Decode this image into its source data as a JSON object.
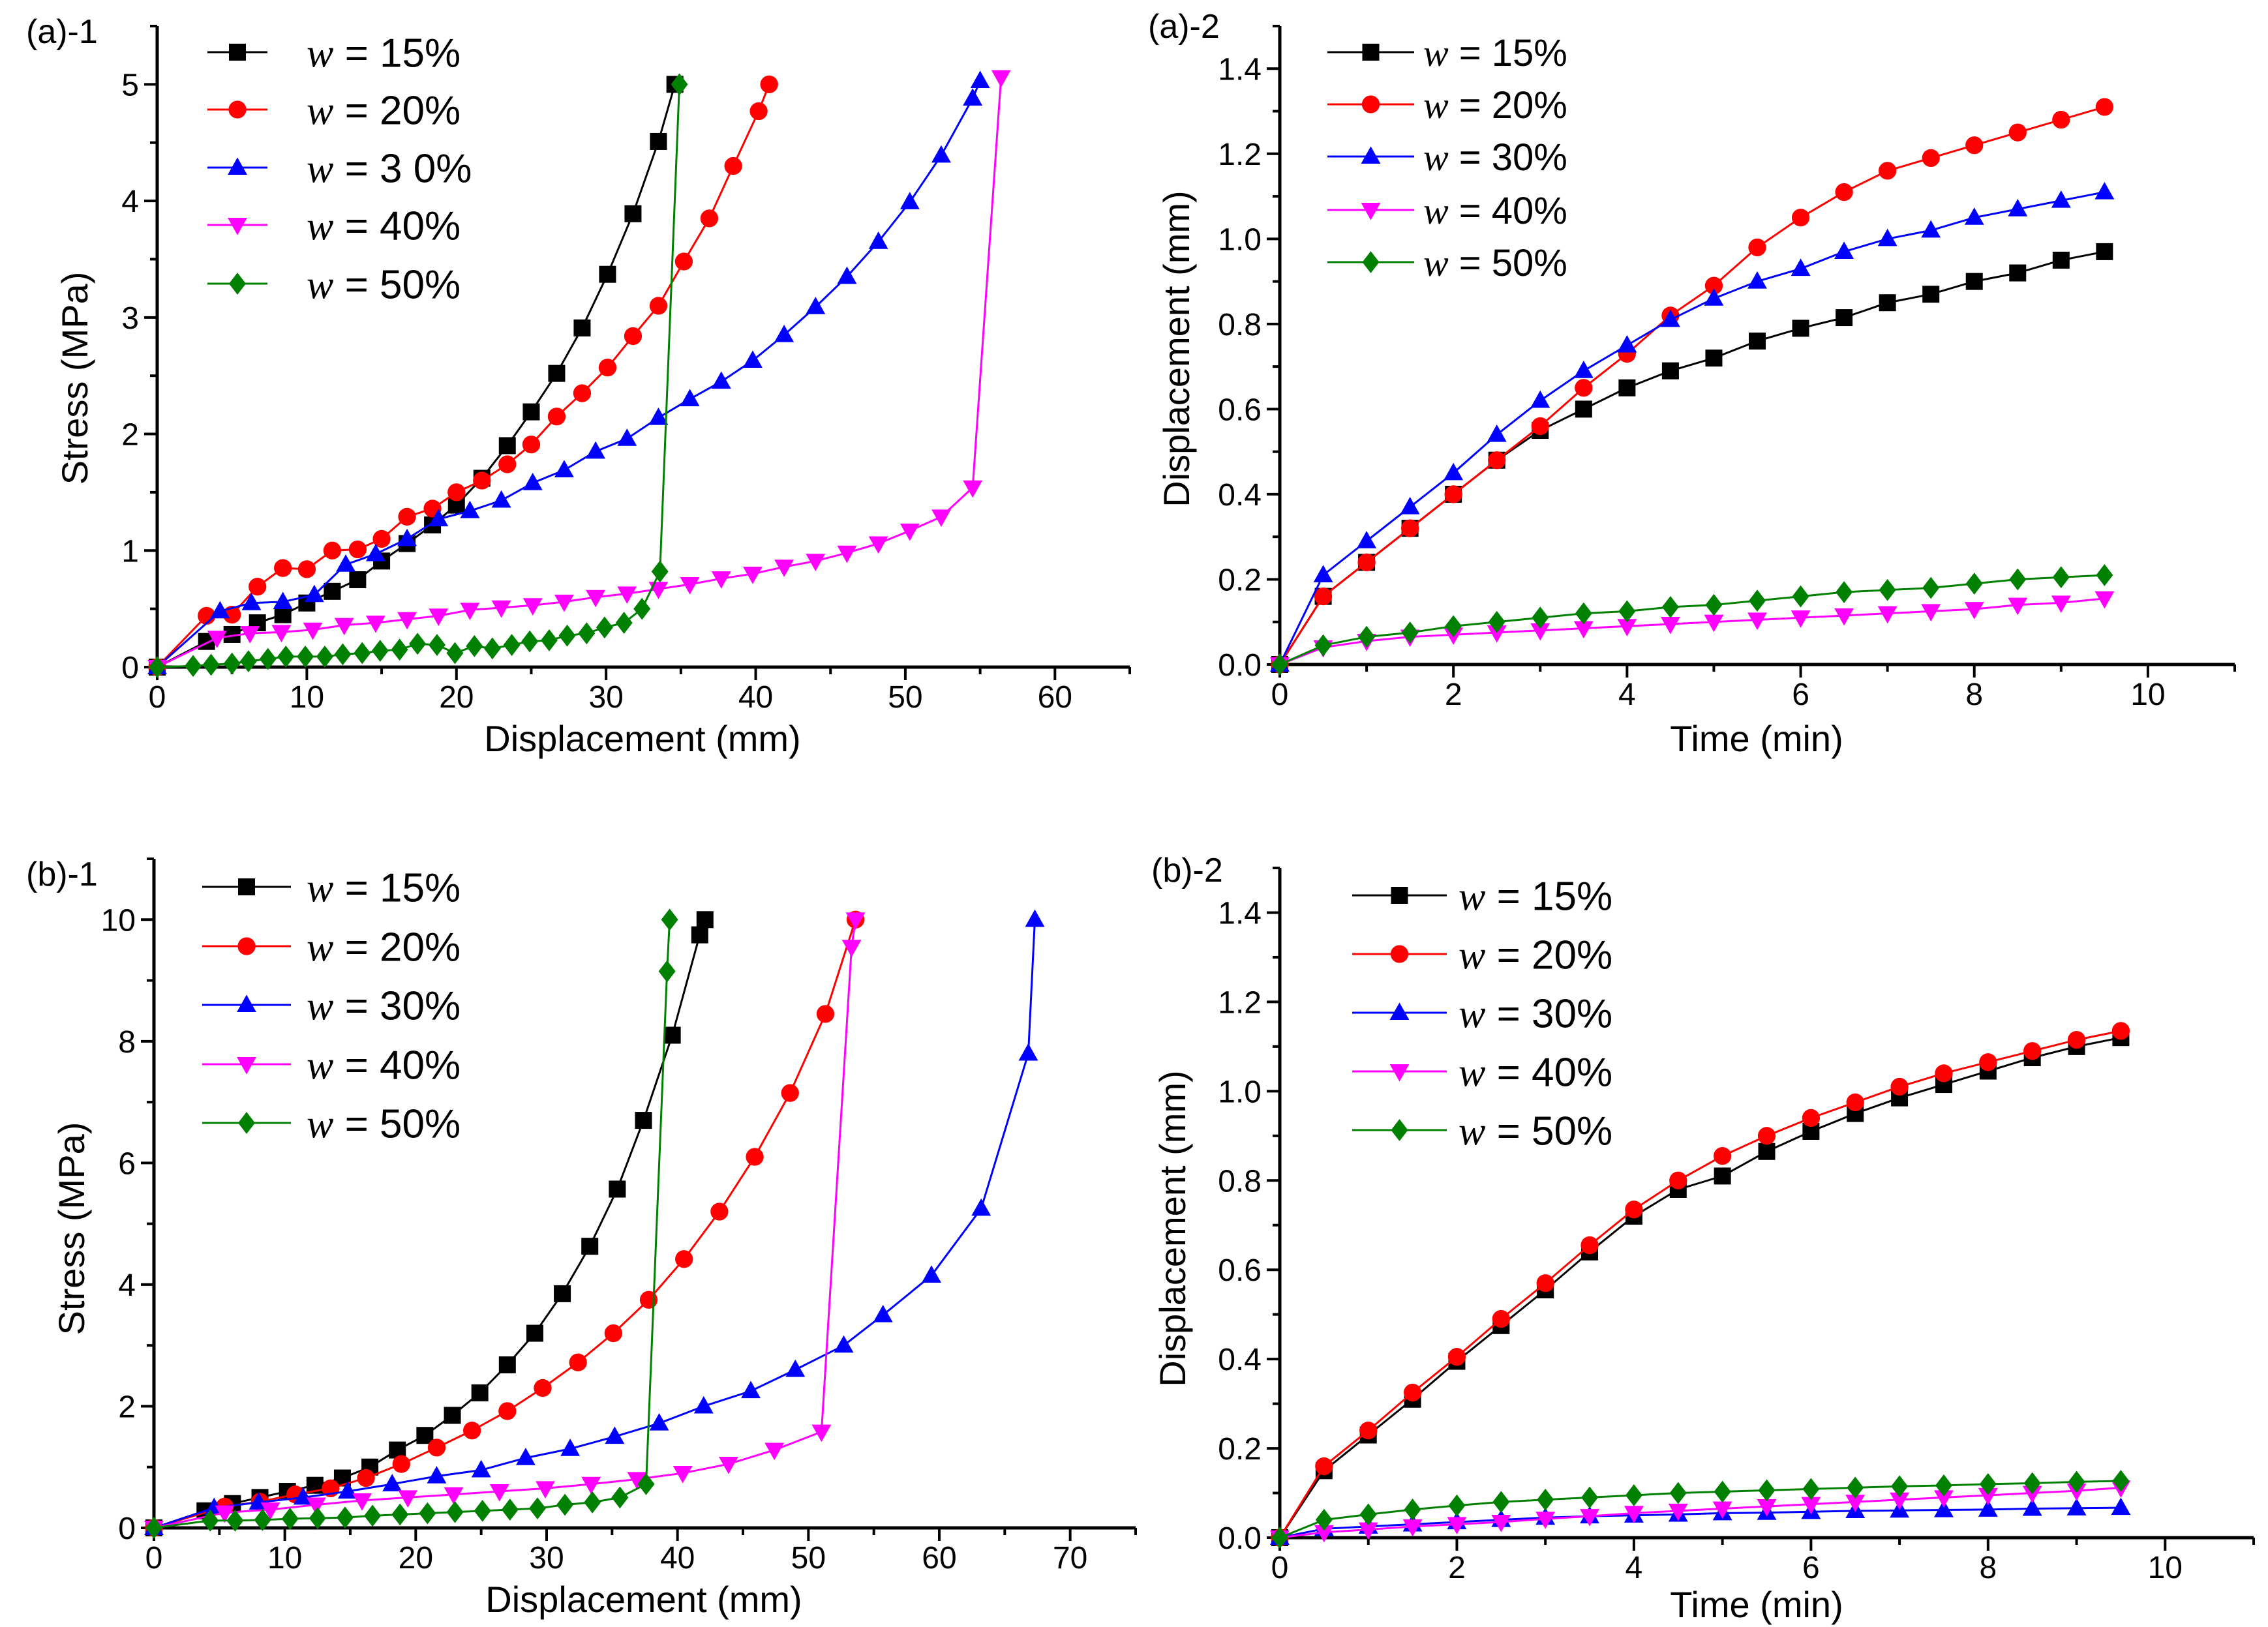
{
  "styles": [
    {
      "color": "#000000",
      "marker": "square"
    },
    {
      "color": "#ff0000",
      "marker": "circle"
    },
    {
      "color": "#0000ff",
      "marker": "triangle-up"
    },
    {
      "color": "#ff00ff",
      "marker": "triangle-down"
    },
    {
      "color": "#008000",
      "marker": "diamond"
    }
  ],
  "chart_data": [
    {
      "type": "line",
      "panel_label": "(a)-1",
      "xlabel": "Displacement (mm)",
      "ylabel": "Stress (MPa)",
      "xlim": [
        0,
        65
      ],
      "ylim": [
        0,
        5.5
      ],
      "xticks": [
        0,
        10,
        20,
        30,
        40,
        50,
        60
      ],
      "xtick_labels": [
        "0",
        "10",
        "20",
        "30",
        "40",
        "50",
        "60"
      ],
      "xminor": 5,
      "yticks": [
        0,
        1,
        2,
        3,
        4,
        5
      ],
      "ytick_labels": [
        "0",
        "1",
        "2",
        "3",
        "4",
        "5"
      ],
      "yminor": 0.5,
      "legend_position": "top-left",
      "series": [
        {
          "name": "w = 15%",
          "w": "w",
          "label": " = 15%",
          "x": [
            0,
            3.3,
            5,
            6.7,
            8.4,
            10,
            11.7,
            13.4,
            15,
            16.7,
            18.4,
            20,
            21.7,
            23.4,
            25,
            26.7,
            28.4,
            30.1,
            31.8,
            33.5,
            34.6
          ],
          "y": [
            0,
            0.22,
            0.28,
            0.38,
            0.45,
            0.55,
            0.65,
            0.75,
            0.91,
            1.06,
            1.22,
            1.39,
            1.62,
            1.9,
            2.19,
            2.52,
            2.91,
            3.37,
            3.89,
            4.51,
            5.0
          ]
        },
        {
          "name": "w = 20%",
          "w": "w",
          "label": " = 20%",
          "x": [
            0,
            3.3,
            5,
            6.7,
            8.4,
            10,
            11.7,
            13.4,
            15,
            16.7,
            18.4,
            20,
            21.7,
            23.4,
            25,
            26.7,
            28.4,
            30.1,
            31.8,
            33.5,
            35.2,
            36.9,
            38.5,
            40.2,
            40.9
          ],
          "y": [
            0,
            0.44,
            0.45,
            0.69,
            0.85,
            0.84,
            1.0,
            1.01,
            1.1,
            1.29,
            1.36,
            1.5,
            1.6,
            1.74,
            1.91,
            2.15,
            2.35,
            2.57,
            2.84,
            3.1,
            3.48,
            3.85,
            4.3,
            4.77,
            5.0
          ]
        },
        {
          "name": "w = 3 0%",
          "w": "w",
          "label": " = 3 0%",
          "x": [
            0,
            4.2,
            6.3,
            8.4,
            10.5,
            12.6,
            14.6,
            16.7,
            18.8,
            20.9,
            23,
            25.1,
            27.2,
            29.3,
            31.4,
            33.5,
            35.6,
            37.7,
            39.8,
            41.9,
            44,
            46.1,
            48.2,
            50.3,
            52.4,
            54.5,
            55
          ],
          "y": [
            0,
            0.48,
            0.55,
            0.56,
            0.62,
            0.88,
            0.97,
            1.1,
            1.27,
            1.34,
            1.43,
            1.58,
            1.69,
            1.85,
            1.96,
            2.14,
            2.3,
            2.45,
            2.63,
            2.85,
            3.09,
            3.35,
            3.65,
            3.99,
            4.39,
            4.88,
            5.03
          ]
        },
        {
          "name": "w = 40%",
          "w": "w",
          "label": " = 40%",
          "x": [
            0,
            4,
            6.2,
            8.3,
            10.4,
            12.5,
            14.6,
            16.7,
            18.8,
            20.9,
            23,
            25.1,
            27.2,
            29.3,
            31.4,
            33.5,
            35.6,
            37.7,
            39.8,
            41.9,
            44,
            46.1,
            48.2,
            50.3,
            52.4,
            54.5,
            56.4
          ],
          "y": [
            0,
            0.25,
            0.29,
            0.3,
            0.32,
            0.36,
            0.38,
            0.41,
            0.44,
            0.49,
            0.51,
            0.53,
            0.56,
            0.6,
            0.63,
            0.67,
            0.71,
            0.76,
            0.8,
            0.86,
            0.91,
            0.98,
            1.06,
            1.17,
            1.29,
            1.54,
            5.06
          ]
        },
        {
          "name": "w = 50%",
          "w": "w",
          "label": " = 50%",
          "x": [
            0,
            2.4,
            3.6,
            5,
            6.1,
            7.4,
            8.6,
            9.9,
            11.2,
            12.4,
            13.7,
            14.9,
            16.2,
            17.4,
            18.7,
            19.9,
            21.2,
            22.4,
            23.7,
            24.9,
            26.2,
            27.4,
            28.7,
            29.9,
            31.2,
            32.4,
            33.6,
            34.9
          ],
          "y": [
            0,
            0.01,
            0.02,
            0.03,
            0.05,
            0.07,
            0.09,
            0.09,
            0.09,
            0.11,
            0.12,
            0.14,
            0.15,
            0.2,
            0.19,
            0.12,
            0.18,
            0.16,
            0.19,
            0.22,
            0.23,
            0.27,
            0.29,
            0.34,
            0.38,
            0.5,
            0.82,
            5.0
          ]
        }
      ]
    },
    {
      "type": "line",
      "panel_label": "(a)-2",
      "xlabel": "Time (min)",
      "ylabel": "Displacement (mm)",
      "xlim": [
        0,
        11
      ],
      "ylim": [
        0,
        1.5
      ],
      "xticks": [
        0,
        2,
        4,
        6,
        8,
        10
      ],
      "xtick_labels": [
        "0",
        "2",
        "4",
        "6",
        "8",
        "10"
      ],
      "xminor": 1,
      "yticks": [
        0,
        0.2,
        0.4,
        0.6,
        0.8,
        1.0,
        1.2,
        1.4
      ],
      "ytick_labels": [
        "0.0",
        "0.2",
        "0.4",
        "0.6",
        "0.8",
        "1.0",
        "1.2",
        "1.4"
      ],
      "yminor": 0.1,
      "legend_position": "top-left",
      "x_shared": [
        0,
        0.5,
        1,
        1.5,
        2,
        2.5,
        3,
        3.5,
        4,
        4.5,
        5,
        5.5,
        6,
        6.5,
        7,
        7.5,
        8,
        8.5,
        9,
        9.5
      ],
      "series": [
        {
          "name": "w = 15%",
          "w": "w",
          "label": " = 15%",
          "y": [
            0,
            0.16,
            0.24,
            0.32,
            0.4,
            0.48,
            0.55,
            0.6,
            0.65,
            0.69,
            0.72,
            0.76,
            0.79,
            0.815,
            0.85,
            0.87,
            0.9,
            0.92,
            0.95,
            0.97
          ]
        },
        {
          "name": "w = 20%",
          "w": "w",
          "label": " = 20%",
          "y": [
            0,
            0.16,
            0.24,
            0.32,
            0.4,
            0.48,
            0.56,
            0.65,
            0.73,
            0.82,
            0.89,
            0.98,
            1.05,
            1.11,
            1.16,
            1.19,
            1.22,
            1.25,
            1.28,
            1.31
          ]
        },
        {
          "name": "w = 30%",
          "w": "w",
          "label": " = 30%",
          "y": [
            0,
            0.21,
            0.29,
            0.37,
            0.45,
            0.54,
            0.62,
            0.69,
            0.75,
            0.81,
            0.86,
            0.9,
            0.93,
            0.97,
            1.0,
            1.02,
            1.05,
            1.07,
            1.09,
            1.11
          ]
        },
        {
          "name": "w = 40%",
          "w": "w",
          "label": " = 40%",
          "y": [
            0,
            0.04,
            0.055,
            0.065,
            0.07,
            0.075,
            0.08,
            0.085,
            0.09,
            0.095,
            0.1,
            0.105,
            0.11,
            0.115,
            0.12,
            0.125,
            0.13,
            0.14,
            0.145,
            0.155
          ]
        },
        {
          "name": "w = 50%",
          "w": "w",
          "label": " = 50%",
          "y": [
            0,
            0.045,
            0.065,
            0.075,
            0.09,
            0.1,
            0.11,
            0.12,
            0.125,
            0.135,
            0.14,
            0.15,
            0.16,
            0.17,
            0.175,
            0.18,
            0.19,
            0.2,
            0.205,
            0.21
          ]
        }
      ]
    },
    {
      "type": "line",
      "panel_label": "(b)-1",
      "xlabel": "Displacement (mm)",
      "ylabel": "Stress (MPa)",
      "xlim": [
        0,
        75
      ],
      "ylim": [
        0,
        11
      ],
      "xticks": [
        0,
        10,
        20,
        30,
        40,
        50,
        60,
        70
      ],
      "xtick_labels": [
        "0",
        "10",
        "20",
        "30",
        "40",
        "50",
        "60",
        "70"
      ],
      "xminor": 5,
      "yticks": [
        0,
        2,
        4,
        6,
        8,
        10
      ],
      "ytick_labels": [
        "0",
        "2",
        "4",
        "6",
        "8",
        "10"
      ],
      "yminor": 1,
      "legend_position": "top-left",
      "series": [
        {
          "name": "w = 15%",
          "w": "w",
          "label": " = 15%",
          "x": [
            0,
            3.9,
            6.0,
            8.1,
            10.2,
            12.3,
            14.4,
            16.5,
            18.6,
            20.7,
            22.8,
            24.9,
            27.0,
            29.1,
            31.2,
            33.3,
            35.4,
            37.4,
            39.6,
            41.7,
            42.1
          ],
          "y": [
            0,
            0.28,
            0.4,
            0.5,
            0.6,
            0.7,
            0.82,
            1.0,
            1.28,
            1.52,
            1.85,
            2.22,
            2.68,
            3.2,
            3.85,
            4.63,
            5.57,
            6.7,
            8.1,
            9.75,
            10.0
          ]
        },
        {
          "name": "w = 20%",
          "w": "w",
          "label": " = 20%",
          "x": [
            0,
            5.4,
            8.1,
            10.8,
            13.5,
            16.2,
            18.9,
            21.6,
            24.3,
            27,
            29.7,
            32.4,
            35.1,
            37.8,
            40.5,
            43.2,
            45.9,
            48.6,
            51.3,
            53.6
          ],
          "y": [
            0,
            0.35,
            0.43,
            0.55,
            0.65,
            0.82,
            1.05,
            1.32,
            1.6,
            1.92,
            2.3,
            2.72,
            3.2,
            3.75,
            4.42,
            5.2,
            6.1,
            7.15,
            8.45,
            10.0
          ]
        },
        {
          "name": "w = 30%",
          "w": "w",
          "label": " = 30%",
          "x": [
            0,
            4.6,
            8,
            11.4,
            14.8,
            18.2,
            21.6,
            25,
            28.4,
            31.8,
            35.2,
            38.6,
            42,
            45.6,
            49,
            52.7,
            55.7,
            59.4,
            63.2,
            66.8,
            67.3
          ],
          "y": [
            0,
            0.33,
            0.42,
            0.5,
            0.6,
            0.72,
            0.85,
            0.95,
            1.15,
            1.3,
            1.5,
            1.72,
            2.0,
            2.25,
            2.6,
            3.0,
            3.5,
            4.15,
            5.25,
            7.8,
            10.0
          ]
        },
        {
          "name": "w = 40%",
          "w": "w",
          "label": " = 40%",
          "x": [
            0,
            5.4,
            8.9,
            12.4,
            15.9,
            19.4,
            22.9,
            26.4,
            29.9,
            33.4,
            36.9,
            40.4,
            43.9,
            47.4,
            51,
            53.3,
            53.6
          ],
          "y": [
            0,
            0.25,
            0.3,
            0.38,
            0.45,
            0.5,
            0.55,
            0.6,
            0.65,
            0.72,
            0.8,
            0.9,
            1.05,
            1.28,
            1.58,
            9.55,
            10.0
          ]
        },
        {
          "name": "w = 50%",
          "w": "w",
          "label": " = 50%",
          "x": [
            0,
            4.3,
            6.2,
            8.3,
            10.4,
            12.5,
            14.6,
            16.7,
            18.8,
            20.9,
            23,
            25.1,
            27.2,
            29.3,
            31.4,
            33.5,
            35.6,
            37.6,
            39.2,
            39.4
          ],
          "y": [
            0,
            0.12,
            0.12,
            0.13,
            0.15,
            0.16,
            0.17,
            0.2,
            0.22,
            0.24,
            0.26,
            0.28,
            0.3,
            0.32,
            0.38,
            0.42,
            0.5,
            0.72,
            9.15,
            10.0
          ]
        }
      ]
    },
    {
      "type": "line",
      "panel_label": "(b)-2",
      "xlabel": "Time (min)",
      "ylabel": "Displacement (mm)",
      "xlim": [
        0,
        11
      ],
      "ylim": [
        0,
        1.5
      ],
      "xticks": [
        0,
        2,
        4,
        6,
        8,
        10
      ],
      "xtick_labels": [
        "0",
        "2",
        "4",
        "6",
        "8",
        "10"
      ],
      "xminor": 1,
      "yticks": [
        0,
        0.2,
        0.4,
        0.6,
        0.8,
        1.0,
        1.2,
        1.4
      ],
      "ytick_labels": [
        "0.0",
        "0.2",
        "0.4",
        "0.6",
        "0.8",
        "1.0",
        "1.2",
        "1.4"
      ],
      "yminor": 0.1,
      "legend_position": "top-left",
      "x_shared": [
        0,
        0.5,
        1,
        1.5,
        2,
        2.5,
        3,
        3.5,
        4,
        4.5,
        5,
        5.5,
        6,
        6.5,
        7,
        7.5,
        8,
        8.5,
        9,
        9.5
      ],
      "series": [
        {
          "name": "w = 15%",
          "w": "w",
          "label": " = 15%",
          "y": [
            0,
            0.15,
            0.23,
            0.31,
            0.395,
            0.475,
            0.555,
            0.64,
            0.72,
            0.78,
            0.81,
            0.865,
            0.91,
            0.95,
            0.985,
            1.015,
            1.045,
            1.075,
            1.1,
            1.12
          ]
        },
        {
          "name": "w = 20%",
          "w": "w",
          "label": " = 20%",
          "y": [
            0,
            0.16,
            0.24,
            0.325,
            0.405,
            0.49,
            0.57,
            0.655,
            0.735,
            0.8,
            0.855,
            0.9,
            0.94,
            0.975,
            1.01,
            1.04,
            1.065,
            1.09,
            1.115,
            1.135
          ]
        },
        {
          "name": "w = 30%",
          "w": "w",
          "label": " = 30%",
          "y": [
            0,
            0.02,
            0.025,
            0.03,
            0.035,
            0.04,
            0.045,
            0.048,
            0.05,
            0.052,
            0.055,
            0.056,
            0.058,
            0.06,
            0.061,
            0.062,
            0.063,
            0.065,
            0.066,
            0.067
          ]
        },
        {
          "name": "w = 40%",
          "w": "w",
          "label": " = 40%",
          "y": [
            0,
            0.012,
            0.018,
            0.025,
            0.03,
            0.035,
            0.042,
            0.048,
            0.055,
            0.06,
            0.065,
            0.07,
            0.075,
            0.08,
            0.085,
            0.09,
            0.095,
            0.1,
            0.105,
            0.112
          ]
        },
        {
          "name": "w = 50%",
          "w": "w",
          "label": " = 50%",
          "y": [
            0,
            0.04,
            0.052,
            0.063,
            0.072,
            0.08,
            0.085,
            0.09,
            0.095,
            0.1,
            0.103,
            0.106,
            0.109,
            0.112,
            0.115,
            0.117,
            0.12,
            0.122,
            0.125,
            0.127
          ]
        }
      ]
    }
  ]
}
